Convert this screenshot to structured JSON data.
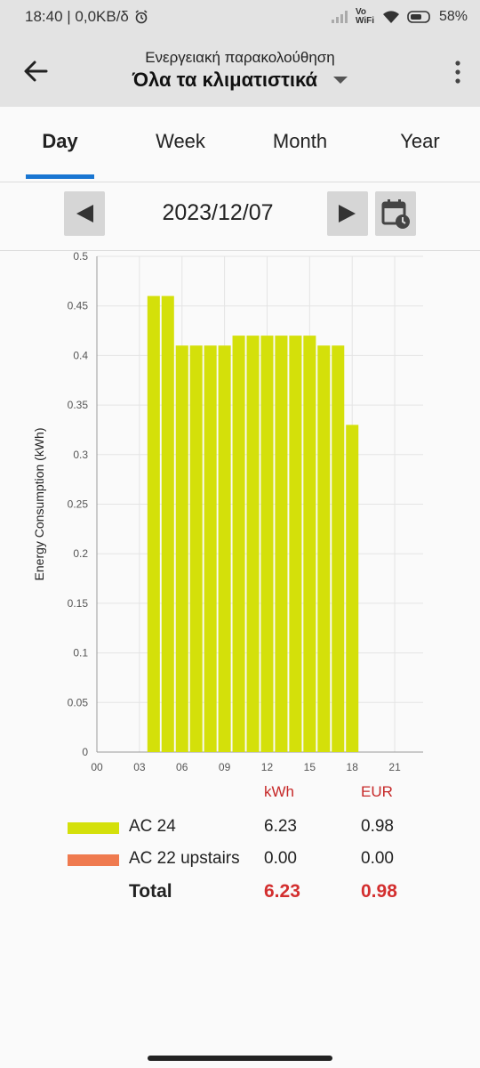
{
  "status": {
    "time_info": "18:40 | 0,0KB/δ",
    "network": "Vo WiFi",
    "battery": "58%"
  },
  "header": {
    "subtitle": "Ενεργειακή παρακολούθηση",
    "title": "Όλα τα κλιματιστικά"
  },
  "tabs": [
    {
      "label": "Day",
      "active": true
    },
    {
      "label": "Week",
      "active": false
    },
    {
      "label": "Month",
      "active": false
    },
    {
      "label": "Year",
      "active": false
    }
  ],
  "date": "2023/12/07",
  "chart_data": {
    "type": "bar",
    "ylabel": "Energy Consumption (kWh)",
    "xlabel": "",
    "ylim": [
      0,
      0.5
    ],
    "xlim": [
      0,
      23
    ],
    "yticks": [
      "0",
      "0.05",
      "0.1",
      "0.15",
      "0.2",
      "0.25",
      "0.3",
      "0.35",
      "0.4",
      "0.45",
      "0.5"
    ],
    "xticks": [
      "00",
      "03",
      "06",
      "09",
      "12",
      "15",
      "18",
      "21"
    ],
    "x": [
      4,
      5,
      6,
      7,
      8,
      9,
      10,
      11,
      12,
      13,
      14,
      15,
      16,
      17,
      18
    ],
    "series": [
      {
        "name": "AC 24",
        "color": "#d4e00a",
        "values": [
          0.46,
          0.46,
          0.41,
          0.41,
          0.41,
          0.41,
          0.42,
          0.42,
          0.42,
          0.42,
          0.42,
          0.42,
          0.41,
          0.41,
          0.33
        ]
      }
    ],
    "grid": true
  },
  "legend": {
    "kwh_header": "kWh",
    "eur_header": "EUR",
    "rows": [
      {
        "name": "AC 24",
        "color": "#d4e00a",
        "kwh": "6.23",
        "eur": "0.98"
      },
      {
        "name": "AC 22 upstairs",
        "color": "#ef7a4f",
        "kwh": "0.00",
        "eur": "0.00"
      }
    ],
    "total": {
      "name": "Total",
      "kwh": "6.23",
      "eur": "0.98"
    }
  }
}
